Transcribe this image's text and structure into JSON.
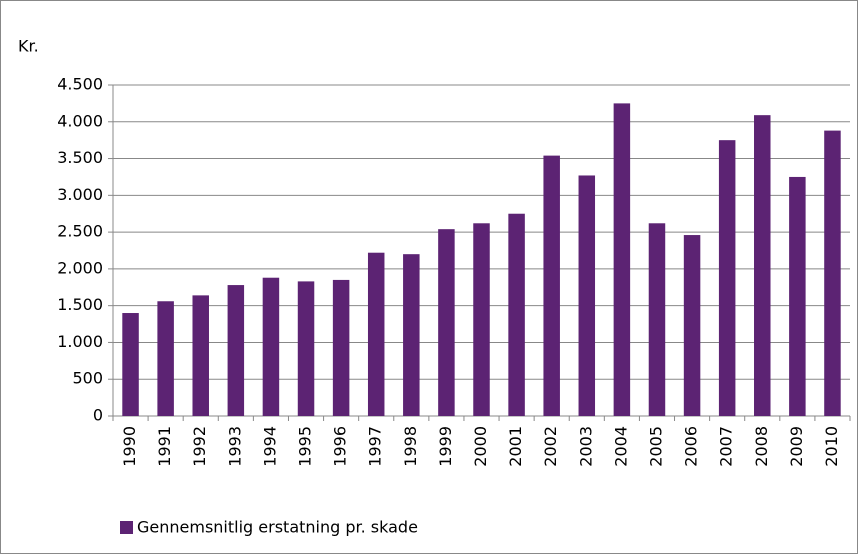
{
  "chart_data": {
    "type": "bar",
    "y_label": "Kr.",
    "categories": [
      "1990",
      "1991",
      "1992",
      "1993",
      "1994",
      "1995",
      "1996",
      "1997",
      "1998",
      "1999",
      "2000",
      "2001",
      "2002",
      "2003",
      "2004",
      "2005",
      "2006",
      "2007",
      "2008",
      "2009",
      "2010"
    ],
    "series": [
      {
        "name": "Gennemsnitlig erstatning pr. skade",
        "color": "#5c2373",
        "values": [
          1400,
          1560,
          1640,
          1780,
          1880,
          1830,
          1850,
          2220,
          2200,
          2540,
          2620,
          2750,
          3540,
          3270,
          4250,
          2620,
          2460,
          3750,
          4090,
          3250,
          3880
        ]
      }
    ],
    "ylim": [
      0,
      4500
    ],
    "yticks": [
      0,
      500,
      {
        "value": 1000,
        "label": "1.000"
      },
      {
        "value": 1500,
        "label": "1.500"
      },
      {
        "value": 2000,
        "label": "2.000"
      },
      {
        "value": 2500,
        "label": "2.500"
      },
      {
        "value": 3000,
        "label": "3.000"
      },
      {
        "value": 3500,
        "label": "3.500"
      },
      {
        "value": 4000,
        "label": "4.000"
      },
      {
        "value": 4500,
        "label": "4.500"
      }
    ],
    "grid": true,
    "legend": "bottom-left"
  }
}
